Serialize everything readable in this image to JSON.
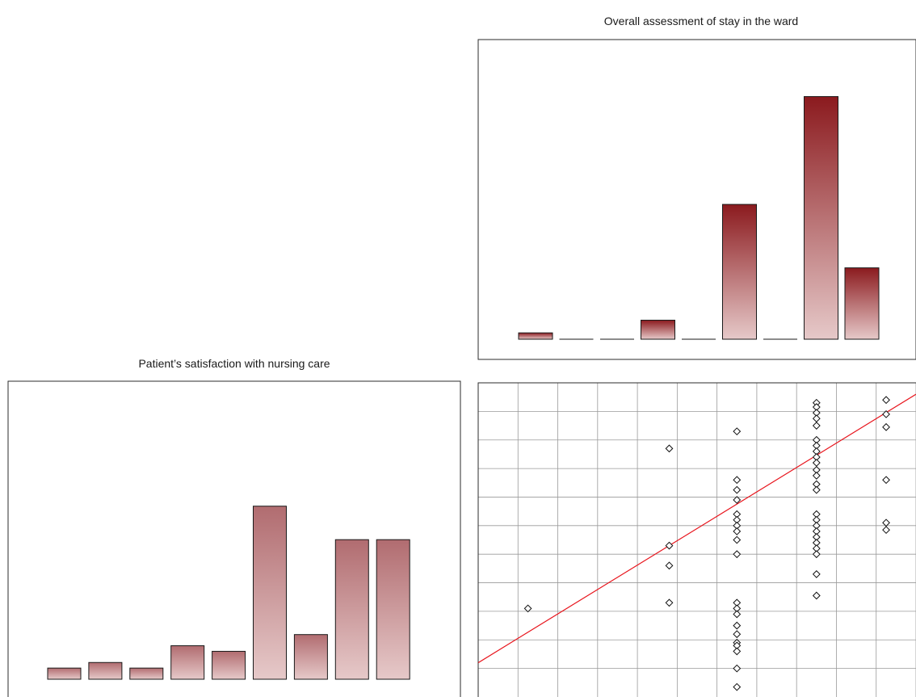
{
  "chart_data": [
    {
      "id": "ward",
      "type": "bar",
      "title": "Overall assessment of stay in the ward",
      "values": [
        0.4,
        0,
        0,
        1.2,
        0,
        8.5,
        0,
        15.3,
        4.5
      ],
      "ylim": [
        0,
        16.5
      ],
      "gradient": {
        "light": "#e6c9c9",
        "dark": "#8b1a1e"
      }
    },
    {
      "id": "nursing",
      "type": "bar",
      "title": "Patient’s satisfaction with nursing care",
      "values": [
        1,
        1.5,
        1,
        3,
        2.5,
        15.5,
        4,
        12.5,
        12.5
      ],
      "ylim": [
        0,
        21.7
      ],
      "gradient": {
        "light": "#e6c9c9",
        "dark": "#b16c70"
      }
    },
    {
      "id": "scatter",
      "type": "scatter",
      "x_range": [
        0,
        11
      ],
      "y_range": [
        0,
        11
      ],
      "grid": true,
      "points": [
        [
          1.25,
          3.1
        ],
        [
          4.8,
          8.7
        ],
        [
          4.8,
          5.3
        ],
        [
          4.8,
          4.6
        ],
        [
          4.8,
          3.3
        ],
        [
          6.5,
          9.3
        ],
        [
          6.5,
          7.6
        ],
        [
          6.5,
          7.25
        ],
        [
          6.5,
          6.9
        ],
        [
          6.5,
          6.4
        ],
        [
          6.5,
          6.2
        ],
        [
          6.5,
          6.0
        ],
        [
          6.5,
          5.8
        ],
        [
          6.5,
          5.5
        ],
        [
          6.5,
          5.0
        ],
        [
          6.5,
          3.3
        ],
        [
          6.5,
          3.1
        ],
        [
          6.5,
          2.9
        ],
        [
          6.5,
          2.5
        ],
        [
          6.5,
          2.2
        ],
        [
          6.5,
          1.9
        ],
        [
          6.5,
          1.8
        ],
        [
          6.5,
          1.6
        ],
        [
          6.5,
          1.0
        ],
        [
          6.5,
          0.35
        ],
        [
          8.5,
          10.3
        ],
        [
          8.5,
          10.15
        ],
        [
          8.5,
          9.95
        ],
        [
          8.5,
          9.75
        ],
        [
          8.5,
          9.5
        ],
        [
          8.5,
          9.0
        ],
        [
          8.5,
          8.8
        ],
        [
          8.5,
          8.6
        ],
        [
          8.5,
          8.4
        ],
        [
          8.5,
          8.2
        ],
        [
          8.5,
          7.95
        ],
        [
          8.5,
          7.75
        ],
        [
          8.5,
          7.45
        ],
        [
          8.5,
          7.25
        ],
        [
          8.5,
          6.4
        ],
        [
          8.5,
          6.2
        ],
        [
          8.5,
          6.0
        ],
        [
          8.5,
          5.8
        ],
        [
          8.5,
          5.6
        ],
        [
          8.5,
          5.4
        ],
        [
          8.5,
          5.2
        ],
        [
          8.5,
          5.0
        ],
        [
          8.5,
          4.3
        ],
        [
          8.5,
          3.55
        ],
        [
          10.25,
          10.4
        ],
        [
          10.25,
          9.9
        ],
        [
          10.25,
          9.45
        ],
        [
          10.25,
          7.6
        ],
        [
          10.25,
          6.1
        ],
        [
          10.25,
          5.85
        ]
      ],
      "trend_line": {
        "from": [
          0,
          1.2
        ],
        "to": [
          11,
          10.6
        ],
        "color": "#e8141c"
      },
      "marker_color": "#111111"
    }
  ]
}
